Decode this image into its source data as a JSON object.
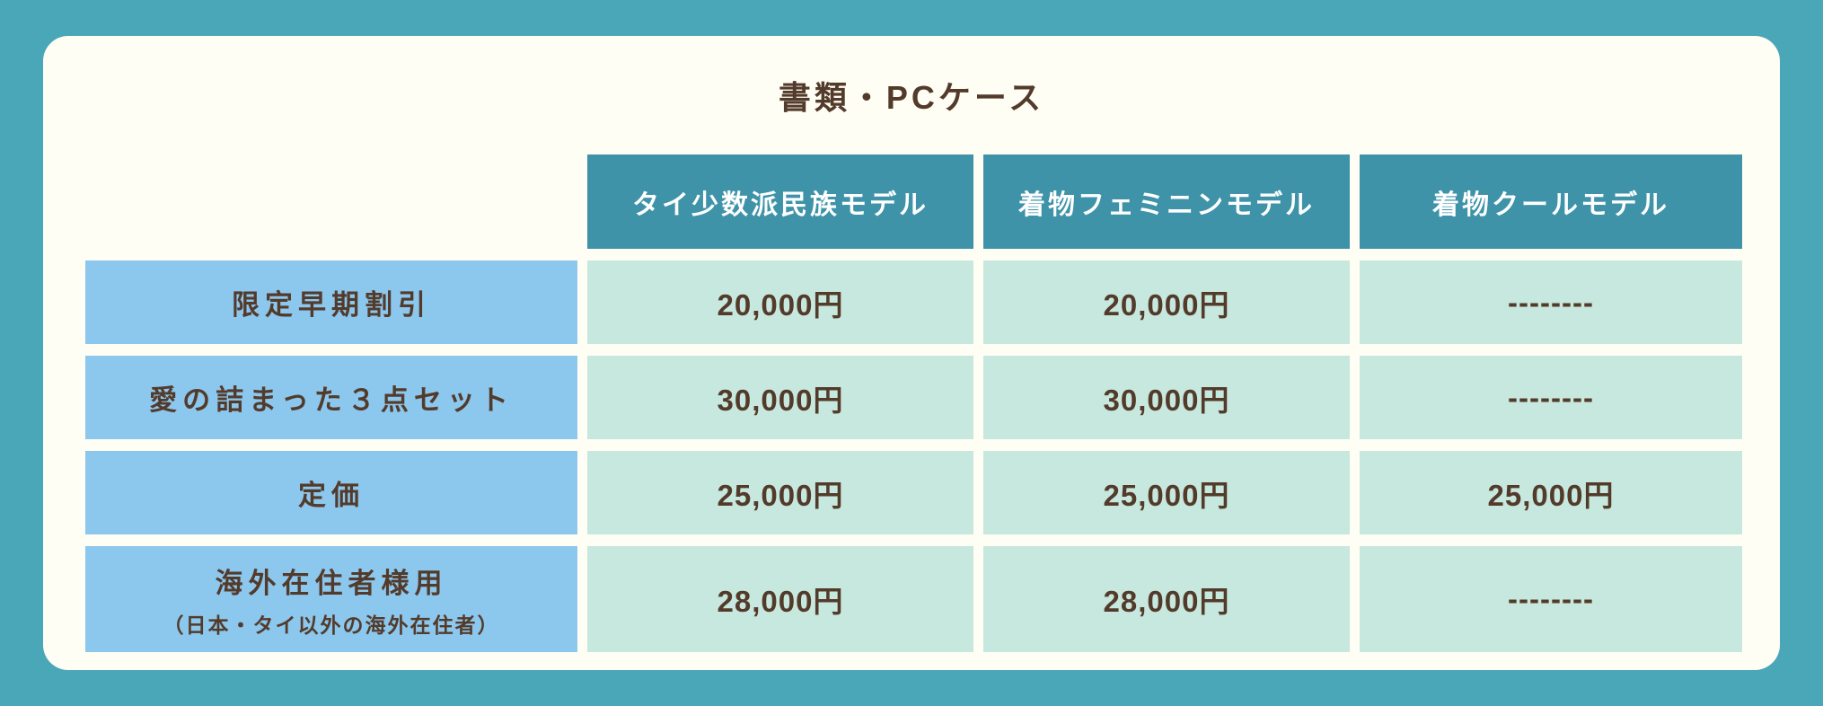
{
  "title": "書類・PCケース",
  "chart_data": {
    "type": "table",
    "title": "書類・PCケース",
    "columns": [
      "タイ少数派民族モデル",
      "着物フェミニンモデル",
      "着物クールモデル"
    ],
    "rows": [
      {
        "label": "限定早期割引",
        "values": [
          "20,000円",
          "20,000円",
          "--------"
        ]
      },
      {
        "label": "愛の詰まった３点セット",
        "values": [
          "30,000円",
          "30,000円",
          "--------"
        ]
      },
      {
        "label": "定価",
        "values": [
          "25,000円",
          "25,000円",
          "25,000円"
        ]
      },
      {
        "label": "海外在住者様用",
        "sublabel": "（日本・タイ以外の海外在住者）",
        "values": [
          "28,000円",
          "28,000円",
          "--------"
        ]
      }
    ]
  },
  "colors": {
    "background": "#4aa7b8",
    "card": "#fffef5",
    "header_cell": "#3e93a9",
    "header_text": "#ffffff",
    "label_cell": "#8cc7ee",
    "value_cell": "#c7e8de",
    "text_brown": "#533b2b"
  }
}
